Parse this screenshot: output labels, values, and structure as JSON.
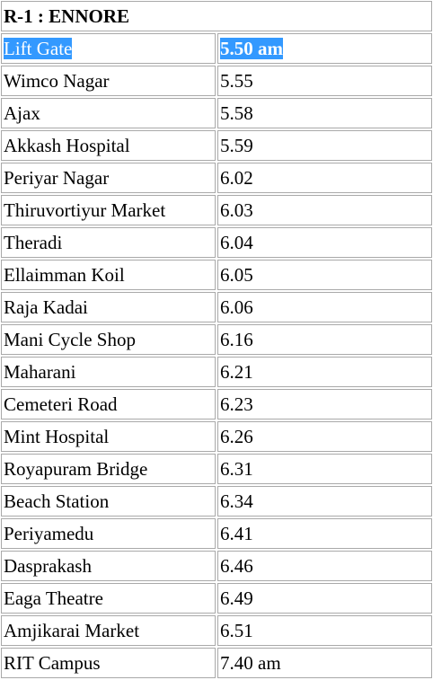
{
  "route": {
    "title": "R-1 : ENNORE",
    "first_stop": {
      "name": "Lift Gate",
      "time": "5.50 am"
    },
    "stops": [
      {
        "name": "Wimco Nagar",
        "time": "5.55"
      },
      {
        "name": "Ajax",
        "time": "5.58"
      },
      {
        "name": "Akkash Hospital",
        "time": "5.59"
      },
      {
        "name": "Periyar Nagar",
        "time": "6.02"
      },
      {
        "name": "Thiruvortiyur Market",
        "time": "6.03"
      },
      {
        "name": "Theradi",
        "time": "6.04"
      },
      {
        "name": "Ellaimman Koil",
        "time": "6.05"
      },
      {
        "name": "Raja Kadai",
        "time": "6.06"
      },
      {
        "name": "Mani Cycle Shop",
        "time": "6.16"
      },
      {
        "name": "Maharani",
        "time": "6.21"
      },
      {
        "name": "Cemeteri Road",
        "time": "6.23"
      },
      {
        "name": "Mint Hospital",
        "time": "6.26"
      },
      {
        "name": "Royapuram Bridge",
        "time": "6.31"
      },
      {
        "name": "Beach Station",
        "time": "6.34"
      },
      {
        "name": "Periyamedu",
        "time": "6.41"
      },
      {
        "name": "Dasprakash",
        "time": "6.46"
      },
      {
        "name": "Eaga Theatre",
        "time": "6.49"
      },
      {
        "name": "Amjikarai Market",
        "time": "6.51"
      },
      {
        "name": "RIT Campus",
        "time": "7.40 am"
      }
    ]
  },
  "colors": {
    "selection_highlight": "#3399ff",
    "cell_border": "#a9a9a9"
  }
}
